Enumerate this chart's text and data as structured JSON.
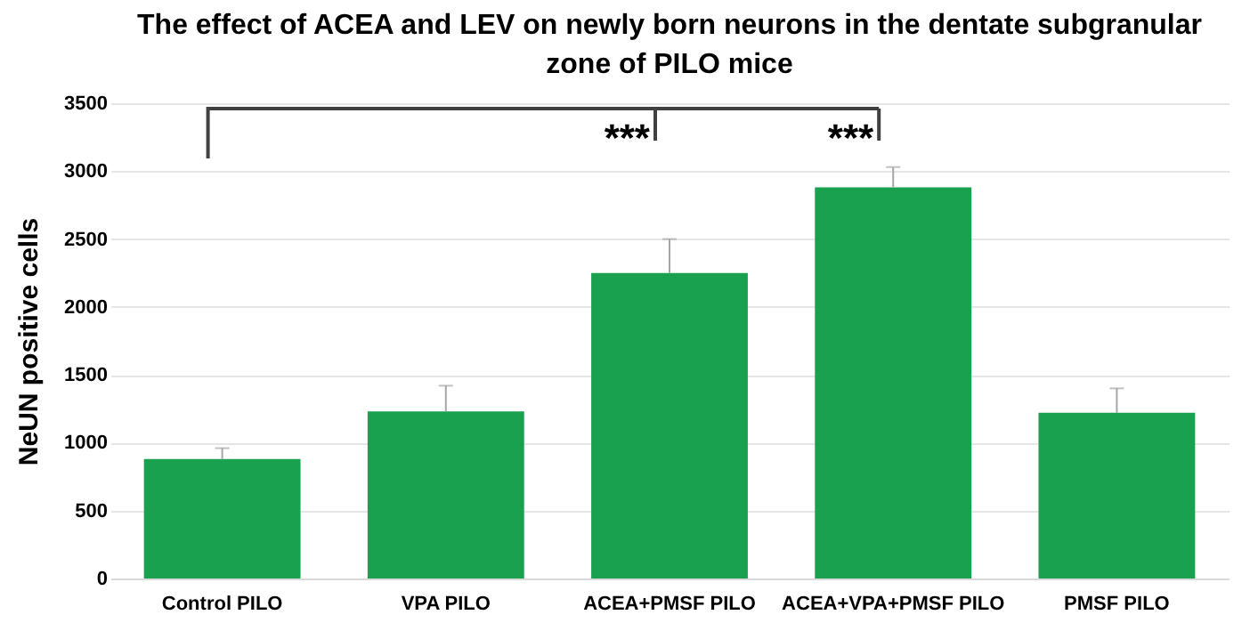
{
  "chart_data": {
    "type": "bar",
    "title": "The effect of ACEA and LEV on newly born neurons in the dentate subgranular zone of PILO mice",
    "ylabel": "NeUN positive cells",
    "categories": [
      "Control PILO",
      "VPA PILO",
      "ACEA+PMSF PILO",
      "ACEA+VPA+PMSF PILO",
      "PMSF PILO"
    ],
    "values": [
      880,
      1230,
      2250,
      2880,
      1220
    ],
    "errors": [
      [
        880,
        960
      ],
      [
        1230,
        1420
      ],
      [
        2250,
        2500
      ],
      [
        2880,
        3030
      ],
      [
        1220,
        1400
      ]
    ],
    "color": "#1aa14f",
    "ylim": [
      0,
      3500
    ],
    "yticks": [
      0,
      500,
      1000,
      1500,
      2000,
      2500,
      3000,
      3500
    ],
    "grid": "y",
    "annotations": [
      "***",
      "***"
    ]
  }
}
